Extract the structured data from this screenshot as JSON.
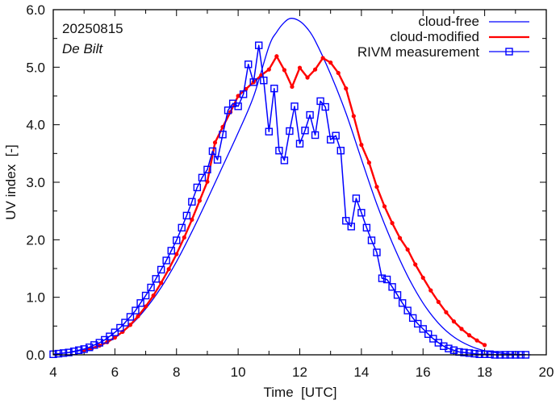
{
  "chart_data": {
    "type": "line",
    "title": "",
    "xlabel": "Time  [UTC]",
    "ylabel": "UV index  [-]",
    "xlim": [
      4,
      20
    ],
    "ylim": [
      0,
      6
    ],
    "xticks": [
      4,
      6,
      8,
      10,
      12,
      14,
      16,
      18,
      20
    ],
    "xtick_labels": [
      "4",
      "6",
      "8",
      "10",
      "12",
      "14",
      "16",
      "18",
      "20"
    ],
    "xminor_step": 1,
    "yticks": [
      0,
      1,
      2,
      3,
      4,
      5,
      6
    ],
    "ytick_labels": [
      "0.0",
      "1.0",
      "2.0",
      "3.0",
      "4.0",
      "5.0",
      "6.0"
    ],
    "yminor_step": 0.5,
    "grid": false,
    "legend_position": "top-right",
    "annotations": {
      "date": "20250815",
      "location": "De Bilt"
    },
    "series": [
      {
        "name": "cloud-free",
        "color": "#0000ff",
        "style": "line",
        "peak_time": 11.72,
        "peak_value": 5.85,
        "x": [
          4.0,
          4.5,
          5.0,
          5.5,
          6.0,
          6.5,
          7.0,
          7.5,
          8.0,
          8.5,
          9.0,
          9.5,
          10.0,
          10.5,
          11.0,
          11.25,
          11.5,
          11.72,
          12.0,
          12.25,
          12.5,
          13.0,
          13.5,
          14.0,
          14.5,
          15.0,
          15.5,
          16.0,
          16.5,
          17.0,
          17.5,
          18.0,
          18.5,
          19.0,
          19.5
        ],
        "values": [
          0.01,
          0.04,
          0.09,
          0.17,
          0.31,
          0.51,
          0.8,
          1.17,
          1.62,
          2.14,
          2.7,
          3.28,
          3.86,
          4.49,
          5.36,
          5.61,
          5.78,
          5.85,
          5.8,
          5.67,
          5.46,
          4.88,
          4.2,
          3.4,
          2.62,
          1.95,
          1.37,
          0.9,
          0.55,
          0.31,
          0.16,
          0.07,
          0.03,
          0.01,
          0.0
        ]
      },
      {
        "name": "cloud-modified",
        "color": "#ff0000",
        "style": "line-dots",
        "x": [
          5.0,
          5.25,
          5.5,
          5.75,
          6.0,
          6.25,
          6.5,
          6.75,
          7.0,
          7.25,
          7.5,
          7.75,
          8.0,
          8.25,
          8.5,
          8.75,
          9.0,
          9.25,
          9.5,
          9.75,
          10.0,
          10.25,
          10.5,
          10.75,
          11.0,
          11.25,
          11.5,
          11.75,
          12.0,
          12.25,
          12.5,
          12.75,
          13.0,
          13.25,
          13.5,
          13.75,
          14.0,
          14.25,
          14.5,
          14.75,
          15.0,
          15.25,
          15.5,
          15.75,
          16.0,
          16.25,
          16.5,
          16.75,
          17.0,
          17.25,
          17.5,
          17.75,
          18.0
        ],
        "values": [
          0.07,
          0.11,
          0.16,
          0.22,
          0.3,
          0.4,
          0.52,
          0.67,
          0.84,
          1.03,
          1.25,
          1.49,
          1.75,
          2.04,
          2.35,
          2.68,
          3.01,
          3.69,
          3.96,
          4.22,
          4.5,
          4.62,
          4.74,
          4.86,
          4.96,
          5.19,
          4.95,
          4.66,
          4.99,
          4.82,
          4.96,
          5.16,
          5.08,
          4.9,
          4.63,
          4.15,
          3.65,
          3.34,
          2.92,
          2.58,
          2.29,
          2.03,
          1.83,
          1.57,
          1.34,
          1.12,
          0.92,
          0.74,
          0.58,
          0.45,
          0.34,
          0.25,
          0.17
        ]
      },
      {
        "name": "RIVM measurement",
        "color": "#0000ff",
        "style": "line-squares",
        "x": [
          4.0,
          4.17,
          4.33,
          4.5,
          4.67,
          4.83,
          5.0,
          5.17,
          5.33,
          5.5,
          5.67,
          5.83,
          6.0,
          6.17,
          6.33,
          6.5,
          6.67,
          6.83,
          7.0,
          7.17,
          7.33,
          7.5,
          7.67,
          7.83,
          8.0,
          8.17,
          8.33,
          8.5,
          8.67,
          8.83,
          9.0,
          9.17,
          9.33,
          9.5,
          9.67,
          9.83,
          10.0,
          10.17,
          10.33,
          10.5,
          10.67,
          10.83,
          11.0,
          11.17,
          11.33,
          11.5,
          11.67,
          11.83,
          12.0,
          12.17,
          12.33,
          12.5,
          12.67,
          12.83,
          13.0,
          13.17,
          13.33,
          13.5,
          13.67,
          13.83,
          14.0,
          14.17,
          14.33,
          14.5,
          14.67,
          14.83,
          15.0,
          15.17,
          15.33,
          15.5,
          15.67,
          15.83,
          16.0,
          16.17,
          16.33,
          16.5,
          16.67,
          16.83,
          17.0,
          17.17,
          17.33,
          17.5,
          17.67,
          17.83,
          18.0,
          18.17,
          18.33,
          18.5,
          18.67,
          18.83,
          19.0,
          19.17,
          19.33
        ],
        "values": [
          0.01,
          0.02,
          0.03,
          0.04,
          0.06,
          0.08,
          0.1,
          0.13,
          0.17,
          0.21,
          0.26,
          0.32,
          0.39,
          0.47,
          0.56,
          0.66,
          0.77,
          0.9,
          1.03,
          1.17,
          1.32,
          1.48,
          1.64,
          1.81,
          1.99,
          2.21,
          2.42,
          2.66,
          2.91,
          3.08,
          3.22,
          3.54,
          3.39,
          3.83,
          4.25,
          4.37,
          4.32,
          4.53,
          5.05,
          4.74,
          5.38,
          4.77,
          3.88,
          4.63,
          3.55,
          3.38,
          3.89,
          4.32,
          3.67,
          3.9,
          4.17,
          3.82,
          4.41,
          4.31,
          3.74,
          3.81,
          3.55,
          2.33,
          2.23,
          2.72,
          2.47,
          2.21,
          1.99,
          1.78,
          1.33,
          1.31,
          1.18,
          1.04,
          0.9,
          0.77,
          0.64,
          0.54,
          0.45,
          0.36,
          0.28,
          0.21,
          0.15,
          0.11,
          0.08,
          0.05,
          0.04,
          0.03,
          0.02,
          0.01,
          0.01,
          0.01,
          0.0,
          0.0,
          0.0,
          0.0,
          0.0,
          0.0,
          0.0
        ]
      }
    ]
  }
}
